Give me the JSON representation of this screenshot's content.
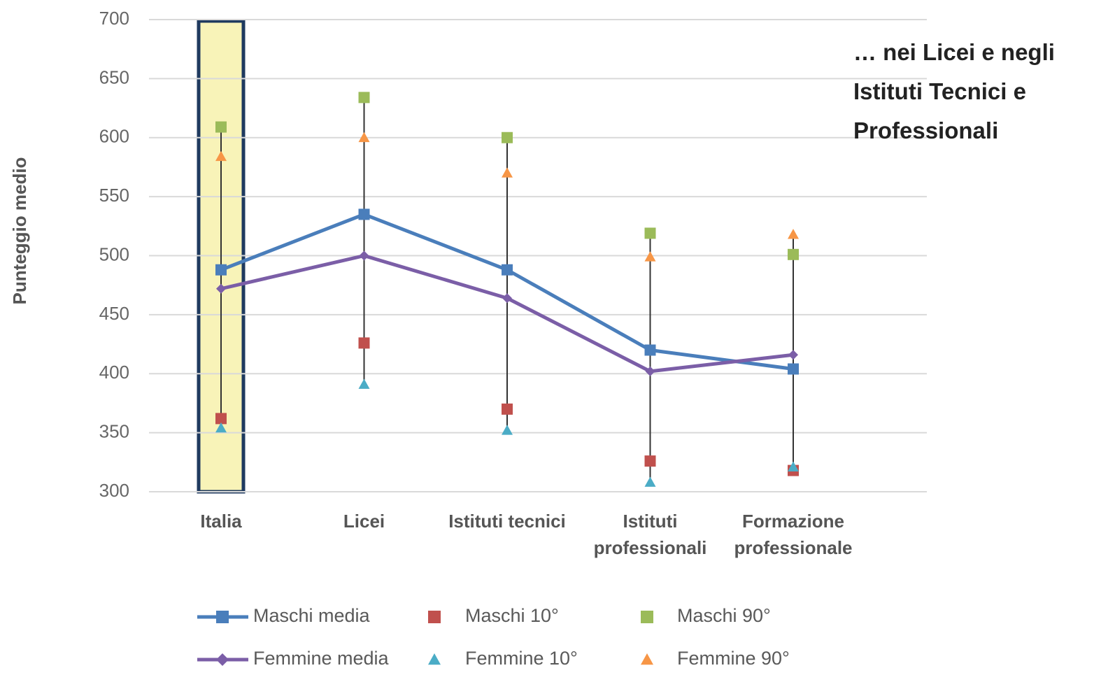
{
  "chart_data": {
    "type": "line",
    "ylabel": "Punteggio medio",
    "categories": [
      "Italia",
      "Licei",
      "Istituti tecnici",
      "Istituti professionali",
      "Formazione professionale"
    ],
    "ylim": [
      300,
      700
    ],
    "yticks": [
      300,
      350,
      400,
      450,
      500,
      550,
      600,
      650,
      700
    ],
    "grid": true,
    "highlight_category": 0,
    "annotation": [
      "… nei Licei e negli",
      "Istituti Tecnici e",
      "Professionali"
    ],
    "series": [
      {
        "name": "Maschi media",
        "color": "#4a7ebb",
        "marker": "square",
        "line": true,
        "values": [
          488,
          535,
          488,
          420,
          404
        ]
      },
      {
        "name": "Maschi 10°",
        "color": "#c0504d",
        "marker": "square",
        "line": false,
        "values": [
          362,
          426,
          370,
          326,
          318
        ]
      },
      {
        "name": "Maschi 90°",
        "color": "#9bbb59",
        "marker": "square",
        "line": false,
        "values": [
          609,
          634,
          600,
          519,
          501
        ]
      },
      {
        "name": "Femmine media",
        "color": "#7b5ea7",
        "marker": "diamond",
        "line": true,
        "values": [
          472,
          500,
          464,
          402,
          416
        ]
      },
      {
        "name": "Femmine 10°",
        "color": "#4bacc6",
        "marker": "triangle",
        "line": false,
        "values": [
          354,
          391,
          352,
          308,
          321
        ]
      },
      {
        "name": "Femmine 90°",
        "color": "#f79646",
        "marker": "triangle",
        "line": false,
        "values": [
          584,
          600,
          570,
          499,
          518
        ]
      }
    ]
  }
}
